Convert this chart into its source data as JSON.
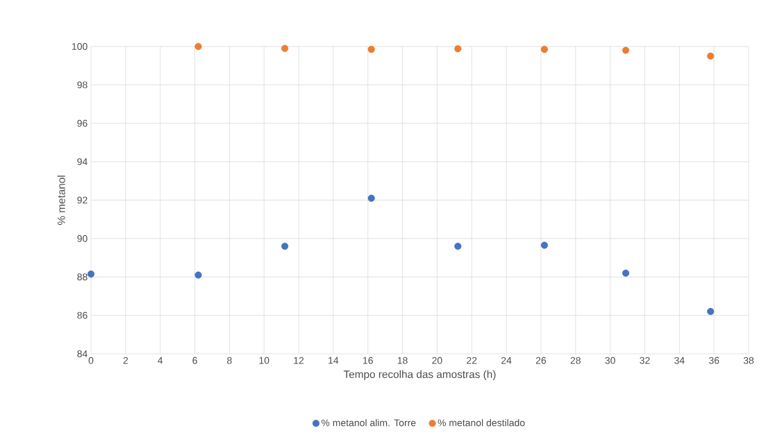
{
  "chart_data": {
    "type": "scatter",
    "xlabel": "Tempo recolha das amostras (h)",
    "ylabel": "% metanol",
    "series": [
      {
        "name": "% metanol alim. Torre",
        "color": "#4472c4",
        "x": [
          0,
          6.2,
          11.2,
          16.2,
          21.2,
          26.2,
          30.9,
          35.8
        ],
        "values": [
          88.15,
          88.1,
          89.6,
          92.1,
          89.6,
          89.65,
          88.2,
          86.2
        ]
      },
      {
        "name": "% metanol destilado",
        "color": "#ed7d31",
        "x": [
          6.2,
          11.2,
          16.2,
          21.2,
          26.2,
          30.9,
          35.8
        ],
        "values": [
          100,
          99.9,
          99.85,
          99.88,
          99.85,
          99.8,
          99.5
        ]
      }
    ],
    "xlim": [
      0,
      38
    ],
    "xticks": [
      0,
      2,
      4,
      6,
      8,
      10,
      12,
      14,
      16,
      18,
      20,
      22,
      24,
      26,
      28,
      30,
      32,
      34,
      36,
      38
    ],
    "ylim": [
      84,
      100
    ],
    "yticks": [
      84,
      86,
      88,
      90,
      92,
      94,
      96,
      98,
      100
    ],
    "grid": true,
    "legend": "bottom",
    "marker": "circle"
  }
}
